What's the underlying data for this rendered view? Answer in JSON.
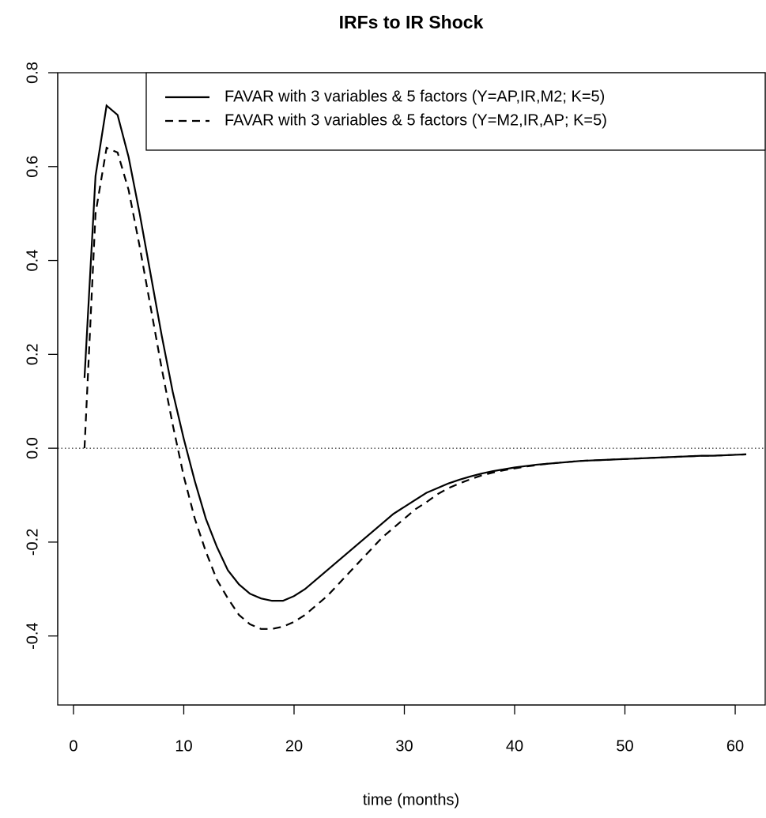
{
  "chart_data": {
    "type": "line",
    "title": "IRFs to IR Shock",
    "x_label": "time (months)",
    "x": [
      1,
      2,
      3,
      4,
      5,
      6,
      7,
      8,
      9,
      10,
      11,
      12,
      13,
      14,
      15,
      16,
      17,
      18,
      19,
      20,
      21,
      22,
      23,
      24,
      25,
      26,
      27,
      28,
      29,
      30,
      31,
      32,
      33,
      34,
      35,
      36,
      37,
      38,
      39,
      40,
      41,
      42,
      43,
      44,
      45,
      46,
      47,
      48,
      49,
      50,
      51,
      52,
      53,
      54,
      55,
      56,
      57,
      58,
      59,
      60,
      61
    ],
    "series": [
      {
        "name": "FAVAR with 3 variables & 5 factors (Y=AP,IR,M2; K=5)",
        "color": "#000000",
        "dash": "solid",
        "values": [
          0.15,
          0.58,
          0.73,
          0.71,
          0.62,
          0.5,
          0.37,
          0.24,
          0.12,
          0.02,
          -0.07,
          -0.15,
          -0.21,
          -0.26,
          -0.29,
          -0.31,
          -0.32,
          -0.325,
          -0.325,
          -0.315,
          -0.3,
          -0.28,
          -0.26,
          -0.24,
          -0.22,
          -0.2,
          -0.18,
          -0.16,
          -0.14,
          -0.125,
          -0.11,
          -0.095,
          -0.085,
          -0.075,
          -0.067,
          -0.06,
          -0.054,
          -0.049,
          -0.045,
          -0.041,
          -0.038,
          -0.035,
          -0.033,
          -0.031,
          -0.029,
          -0.027,
          -0.026,
          -0.025,
          -0.024,
          -0.023,
          -0.022,
          -0.021,
          -0.02,
          -0.019,
          -0.018,
          -0.017,
          -0.016,
          -0.016,
          -0.015,
          -0.014,
          -0.013
        ]
      },
      {
        "name": "FAVAR with 3 variables & 5 factors (Y=M2,IR,AP; K=5)",
        "color": "#000000",
        "dash": "dashed",
        "values": [
          0.0,
          0.5,
          0.64,
          0.63,
          0.55,
          0.43,
          0.3,
          0.17,
          0.05,
          -0.06,
          -0.15,
          -0.22,
          -0.28,
          -0.32,
          -0.355,
          -0.375,
          -0.385,
          -0.385,
          -0.38,
          -0.37,
          -0.355,
          -0.335,
          -0.315,
          -0.29,
          -0.265,
          -0.24,
          -0.215,
          -0.19,
          -0.17,
          -0.15,
          -0.13,
          -0.115,
          -0.098,
          -0.085,
          -0.075,
          -0.066,
          -0.058,
          -0.052,
          -0.047,
          -0.043,
          -0.039,
          -0.036,
          -0.033,
          -0.031,
          -0.029,
          -0.027,
          -0.026,
          -0.025,
          -0.024,
          -0.023,
          -0.022,
          -0.021,
          -0.02,
          -0.019,
          -0.018,
          -0.017,
          -0.016,
          -0.016,
          -0.015,
          -0.014,
          -0.013
        ]
      }
    ],
    "xlim": [
      -1.43,
      62.72
    ],
    "ylim": [
      -0.547,
      0.8
    ],
    "xticks": [
      0,
      10,
      20,
      30,
      40,
      50,
      60
    ],
    "yticks": [
      -0.4,
      -0.2,
      {
        "value": 0,
        "label": "0.0"
      },
      0.2,
      0.4,
      0.6,
      0.8
    ],
    "reference_line": 0,
    "legend": "topright"
  }
}
